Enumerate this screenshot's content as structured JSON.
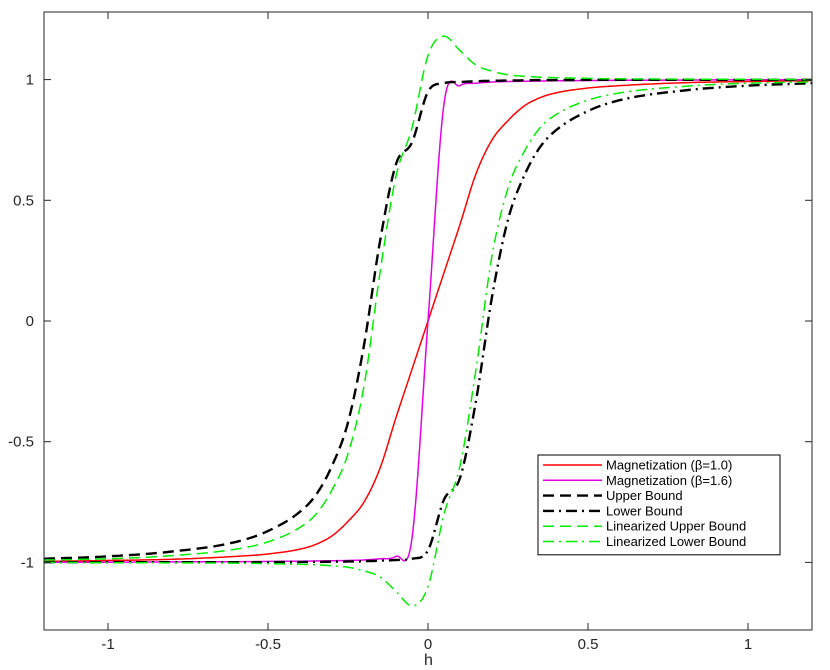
{
  "chart_data": {
    "type": "line",
    "title": "",
    "xlabel": "h",
    "ylabel": "",
    "xlim": [
      -1.2,
      1.2
    ],
    "ylim": [
      -1.28,
      1.28
    ],
    "x_ticks": [
      -1,
      -0.5,
      0,
      0.5,
      1
    ],
    "x_tick_labels": [
      "-1",
      "-0.5",
      "0",
      "0.5",
      "1"
    ],
    "y_ticks": [
      -1,
      -0.5,
      0,
      0.5,
      1
    ],
    "y_tick_labels": [
      "-1",
      "-0.5",
      "0",
      "0.5",
      "1"
    ],
    "grid": false,
    "legend_position": "bottom-right",
    "x": [
      -1.2,
      -1.0,
      -0.8,
      -0.6,
      -0.5,
      -0.4,
      -0.35,
      -0.3,
      -0.25,
      -0.2,
      -0.15,
      -0.1,
      -0.05,
      0,
      0.05,
      0.1,
      0.15,
      0.2,
      0.25,
      0.3,
      0.35,
      0.4,
      0.5,
      0.6,
      0.8,
      1.0,
      1.2
    ],
    "series": [
      {
        "name": "Magnetization (β=1.0)",
        "color": "#ff0000",
        "dash": "solid",
        "values": [
          -0.996,
          -0.992,
          -0.987,
          -0.975,
          -0.965,
          -0.945,
          -0.925,
          -0.89,
          -0.83,
          -0.75,
          -0.61,
          -0.4,
          -0.2,
          0.0,
          0.2,
          0.4,
          0.61,
          0.75,
          0.83,
          0.89,
          0.925,
          0.945,
          0.965,
          0.975,
          0.987,
          0.992,
          0.996
        ]
      },
      {
        "name": "Magnetization (β=1.6)",
        "color": "#e600e6",
        "dash": "solid",
        "values": [
          -0.999,
          -0.999,
          -0.998,
          -0.997,
          -0.996,
          -0.995,
          -0.994,
          -0.993,
          -0.992,
          -0.99,
          -0.985,
          -0.975,
          -0.9,
          0.0,
          0.9,
          0.975,
          0.985,
          0.99,
          0.992,
          0.993,
          0.994,
          0.995,
          0.996,
          0.997,
          0.998,
          0.999,
          0.999
        ]
      },
      {
        "name": "Upper Bound",
        "color": "#000000",
        "dash": "dashed",
        "values": [
          -0.985,
          -0.975,
          -0.955,
          -0.915,
          -0.87,
          -0.79,
          -0.72,
          -0.6,
          -0.42,
          -0.1,
          0.33,
          0.65,
          0.74,
          0.95,
          0.985,
          0.99,
          0.993,
          0.995,
          0.996,
          0.997,
          0.998,
          0.998,
          0.999,
          0.999,
          0.999,
          0.999,
          0.999
        ]
      },
      {
        "name": "Lower Bound",
        "color": "#000000",
        "dash": "dashdot",
        "values": [
          -0.999,
          -0.999,
          -0.999,
          -0.999,
          -0.999,
          -0.998,
          -0.998,
          -0.997,
          -0.996,
          -0.995,
          -0.993,
          -0.99,
          -0.985,
          -0.95,
          -0.74,
          -0.65,
          -0.33,
          0.1,
          0.42,
          0.6,
          0.72,
          0.79,
          0.87,
          0.915,
          0.955,
          0.975,
          0.985
        ]
      },
      {
        "name": "Linearized Upper Bound",
        "color": "#00ee00",
        "dash": "dashed",
        "values": [
          -0.99,
          -0.985,
          -0.972,
          -0.945,
          -0.915,
          -0.855,
          -0.8,
          -0.7,
          -0.55,
          -0.27,
          0.2,
          0.6,
          0.8,
          1.1,
          1.18,
          1.12,
          1.06,
          1.035,
          1.02,
          1.014,
          1.01,
          1.008,
          1.005,
          1.003,
          1.002,
          1.001,
          1.0
        ]
      },
      {
        "name": "Linearized Lower Bound",
        "color": "#00ee00",
        "dash": "dashdot",
        "values": [
          -1.0,
          -1.001,
          -1.002,
          -1.003,
          -1.005,
          -1.008,
          -1.01,
          -1.014,
          -1.02,
          -1.035,
          -1.06,
          -1.12,
          -1.18,
          -1.1,
          -0.8,
          -0.6,
          -0.2,
          0.27,
          0.55,
          0.7,
          0.8,
          0.855,
          0.915,
          0.945,
          0.972,
          0.985,
          0.99
        ]
      }
    ]
  }
}
